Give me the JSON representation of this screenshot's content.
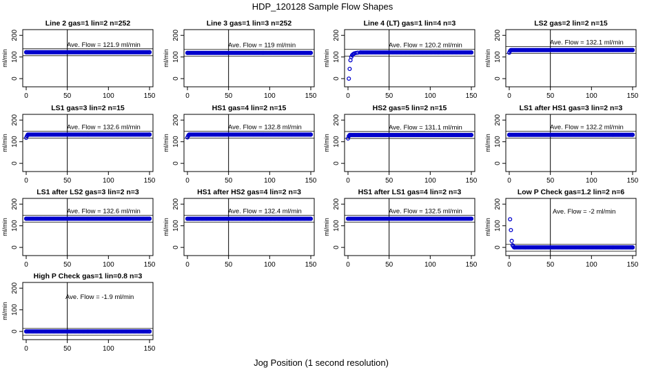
{
  "page": {
    "title": "HDP_120128  Sample Flow Shapes",
    "xlabel": "Jog Position (1 second resolution)"
  },
  "style": {
    "point_color": "#0000cc",
    "line_color": "#000000"
  },
  "chart_data": [
    {
      "type": "scatter",
      "title": "Line 2 gas=1 lin=2 n=252",
      "annotation": "Ave. Flow =  121.9  ml/min",
      "mean": 121.9,
      "ylabel": "ml/min",
      "xlim": [
        0,
        150
      ],
      "ylim": [
        -25,
        220
      ],
      "xticks": [
        0,
        50,
        100,
        150
      ],
      "yticks": [
        0,
        100,
        200
      ],
      "vline": 50,
      "series": [
        {
          "x": [
            0,
            150
          ],
          "y": [
            121.9,
            121.9
          ]
        }
      ]
    },
    {
      "type": "scatter",
      "title": "Line 3 gas=1 lin=3 n=252",
      "annotation": "Ave. Flow =  119  ml/min",
      "mean": 119,
      "ylabel": "ml/min",
      "xlim": [
        0,
        150
      ],
      "ylim": [
        -25,
        220
      ],
      "xticks": [
        0,
        50,
        100,
        150
      ],
      "yticks": [
        0,
        100,
        200
      ],
      "vline": 50,
      "series": [
        {
          "x": [
            0,
            150
          ],
          "y": [
            119,
            119
          ]
        }
      ]
    },
    {
      "type": "scatter",
      "title": "Line 4 (LT) gas=1 lin=4 n=3",
      "annotation": "Ave. Flow =  120.2  ml/min",
      "mean": 120.2,
      "ylabel": "ml/min",
      "xlim": [
        0,
        150
      ],
      "ylim": [
        -25,
        220
      ],
      "xticks": [
        0,
        50,
        100,
        150
      ],
      "yticks": [
        0,
        100,
        200
      ],
      "vline": 50,
      "series": [
        {
          "x": [
            1,
            2,
            3,
            4,
            5,
            6,
            7,
            8,
            10,
            12,
            15,
            150
          ],
          "y": [
            0,
            45,
            85,
            100,
            108,
            112,
            115,
            117,
            119,
            120,
            121,
            121
          ]
        }
      ]
    },
    {
      "type": "scatter",
      "title": "LS2 gas=2 lin=2 n=15",
      "annotation": "Ave. Flow =  132.1  ml/min",
      "mean": 132.1,
      "ylabel": "ml/min",
      "xlim": [
        0,
        150
      ],
      "ylim": [
        -25,
        220
      ],
      "xticks": [
        0,
        50,
        100,
        150
      ],
      "yticks": [
        0,
        100,
        200
      ],
      "vline": 50,
      "series": [
        {
          "x": [
            0,
            1,
            2,
            150
          ],
          "y": [
            120,
            128,
            131,
            132
          ]
        }
      ]
    },
    {
      "type": "scatter",
      "title": "LS1 gas=3 lin=2 n=15",
      "annotation": "Ave. Flow =  132.6  ml/min",
      "mean": 132.6,
      "ylabel": "ml/min",
      "xlim": [
        0,
        150
      ],
      "ylim": [
        -25,
        220
      ],
      "xticks": [
        0,
        50,
        100,
        150
      ],
      "yticks": [
        0,
        100,
        200
      ],
      "vline": 50,
      "series": [
        {
          "x": [
            0,
            1,
            2,
            150
          ],
          "y": [
            118,
            127,
            131,
            133
          ]
        }
      ]
    },
    {
      "type": "scatter",
      "title": "HS1 gas=4 lin=2 n=15",
      "annotation": "Ave. Flow =  132.8  ml/min",
      "mean": 132.8,
      "ylabel": "ml/min",
      "xlim": [
        0,
        150
      ],
      "ylim": [
        -25,
        220
      ],
      "xticks": [
        0,
        50,
        100,
        150
      ],
      "yticks": [
        0,
        100,
        200
      ],
      "vline": 50,
      "series": [
        {
          "x": [
            0,
            1,
            2,
            150
          ],
          "y": [
            120,
            128,
            131,
            133
          ]
        }
      ]
    },
    {
      "type": "scatter",
      "title": "HS2 gas=5 lin=2 n=15",
      "annotation": "Ave. Flow =  131.1  ml/min",
      "mean": 131.1,
      "ylabel": "ml/min",
      "xlim": [
        0,
        150
      ],
      "ylim": [
        -25,
        220
      ],
      "xticks": [
        0,
        50,
        100,
        150
      ],
      "yticks": [
        0,
        100,
        200
      ],
      "vline": 50,
      "series": [
        {
          "x": [
            0,
            1,
            2,
            150
          ],
          "y": [
            115,
            126,
            130,
            131
          ]
        }
      ]
    },
    {
      "type": "scatter",
      "title": "LS1 after HS1 gas=3 lin=2 n=3",
      "annotation": "Ave. Flow =  132.2  ml/min",
      "mean": 132.2,
      "ylabel": "ml/min",
      "xlim": [
        0,
        150
      ],
      "ylim": [
        -25,
        220
      ],
      "xticks": [
        0,
        50,
        100,
        150
      ],
      "yticks": [
        0,
        100,
        200
      ],
      "vline": 50,
      "series": [
        {
          "x": [
            0,
            150
          ],
          "y": [
            132,
            132
          ]
        }
      ]
    },
    {
      "type": "scatter",
      "title": "LS1 after LS2 gas=3 lin=2 n=3",
      "annotation": "Ave. Flow =  132.6  ml/min",
      "mean": 132.6,
      "ylabel": "ml/min",
      "xlim": [
        0,
        150
      ],
      "ylim": [
        -25,
        220
      ],
      "xticks": [
        0,
        50,
        100,
        150
      ],
      "yticks": [
        0,
        100,
        200
      ],
      "vline": 50,
      "series": [
        {
          "x": [
            0,
            150
          ],
          "y": [
            132.6,
            132.6
          ]
        }
      ]
    },
    {
      "type": "scatter",
      "title": "HS1 after HS2 gas=4 lin=2 n=3",
      "annotation": "Ave. Flow =  132.4  ml/min",
      "mean": 132.4,
      "ylabel": "ml/min",
      "xlim": [
        0,
        150
      ],
      "ylim": [
        -25,
        220
      ],
      "xticks": [
        0,
        50,
        100,
        150
      ],
      "yticks": [
        0,
        100,
        200
      ],
      "vline": 50,
      "series": [
        {
          "x": [
            0,
            150
          ],
          "y": [
            132.4,
            132.4
          ]
        }
      ]
    },
    {
      "type": "scatter",
      "title": "HS1 after LS1 gas=4 lin=2 n=3",
      "annotation": "Ave. Flow =  132.5  ml/min",
      "mean": 132.5,
      "ylabel": "ml/min",
      "xlim": [
        0,
        150
      ],
      "ylim": [
        -25,
        220
      ],
      "xticks": [
        0,
        50,
        100,
        150
      ],
      "yticks": [
        0,
        100,
        200
      ],
      "vline": 50,
      "series": [
        {
          "x": [
            0,
            150
          ],
          "y": [
            132.5,
            132.5
          ]
        }
      ]
    },
    {
      "type": "scatter",
      "title": "Low P Check gas=1.2 lin=2 n=6",
      "annotation": "Ave. Flow =  -2  ml/min",
      "mean": -2,
      "ylabel": "ml/min",
      "xlim": [
        0,
        150
      ],
      "ylim": [
        -25,
        220
      ],
      "xticks": [
        0,
        50,
        100,
        150
      ],
      "yticks": [
        0,
        100,
        200
      ],
      "vline": 50,
      "series": [
        {
          "x": [
            1,
            2,
            3,
            4,
            5,
            6,
            150
          ],
          "y": [
            130,
            80,
            30,
            10,
            5,
            0,
            0
          ]
        }
      ]
    },
    {
      "type": "scatter",
      "title": "High P Check gas=1 lin=0.8 n=3",
      "annotation": "Ave. Flow =  -1.9  ml/min",
      "mean": -1.9,
      "ylabel": "ml/min",
      "xlim": [
        0,
        150
      ],
      "ylim": [
        -25,
        220
      ],
      "xticks": [
        0,
        50,
        100,
        150
      ],
      "yticks": [
        0,
        100,
        200
      ],
      "vline": 50,
      "series": [
        {
          "x": [
            0,
            150
          ],
          "y": [
            0,
            0
          ]
        }
      ]
    }
  ]
}
